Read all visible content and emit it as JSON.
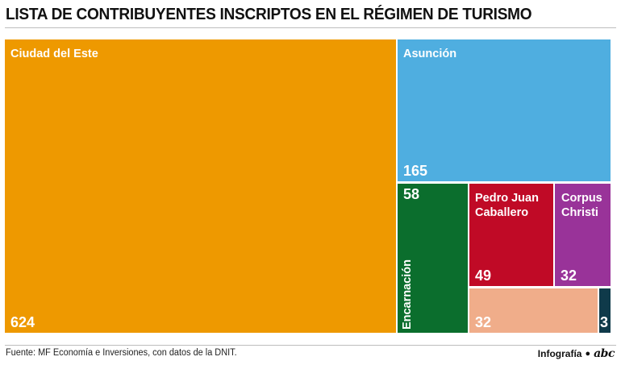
{
  "title": "LISTA DE CONTRIBUYENTES INSCRIPTOS EN EL RÉGIMEN DE TURISMO",
  "chart_data": {
    "type": "treemap",
    "items": [
      {
        "label": "Ciudad del Este",
        "value": 624,
        "color": "#ee9900"
      },
      {
        "label": "Asunción",
        "value": 165,
        "color": "#4faee0"
      },
      {
        "label": "Encarnación",
        "value": 58,
        "color": "#0b6e2d"
      },
      {
        "label": "Pedro Juan Caballero",
        "value": 49,
        "color": "#c00a26"
      },
      {
        "label": "Corpus Christi",
        "value": 32,
        "color": "#993399"
      },
      {
        "label": "",
        "value": 32,
        "color": "#f0ad8a"
      },
      {
        "label": "",
        "value": 3,
        "color": "#0f3a4a"
      }
    ]
  },
  "footer": {
    "source": "Fuente: MF Economía e Inversiones, con datos de la DNIT.",
    "credit": "Infografía",
    "logo": "abc"
  }
}
